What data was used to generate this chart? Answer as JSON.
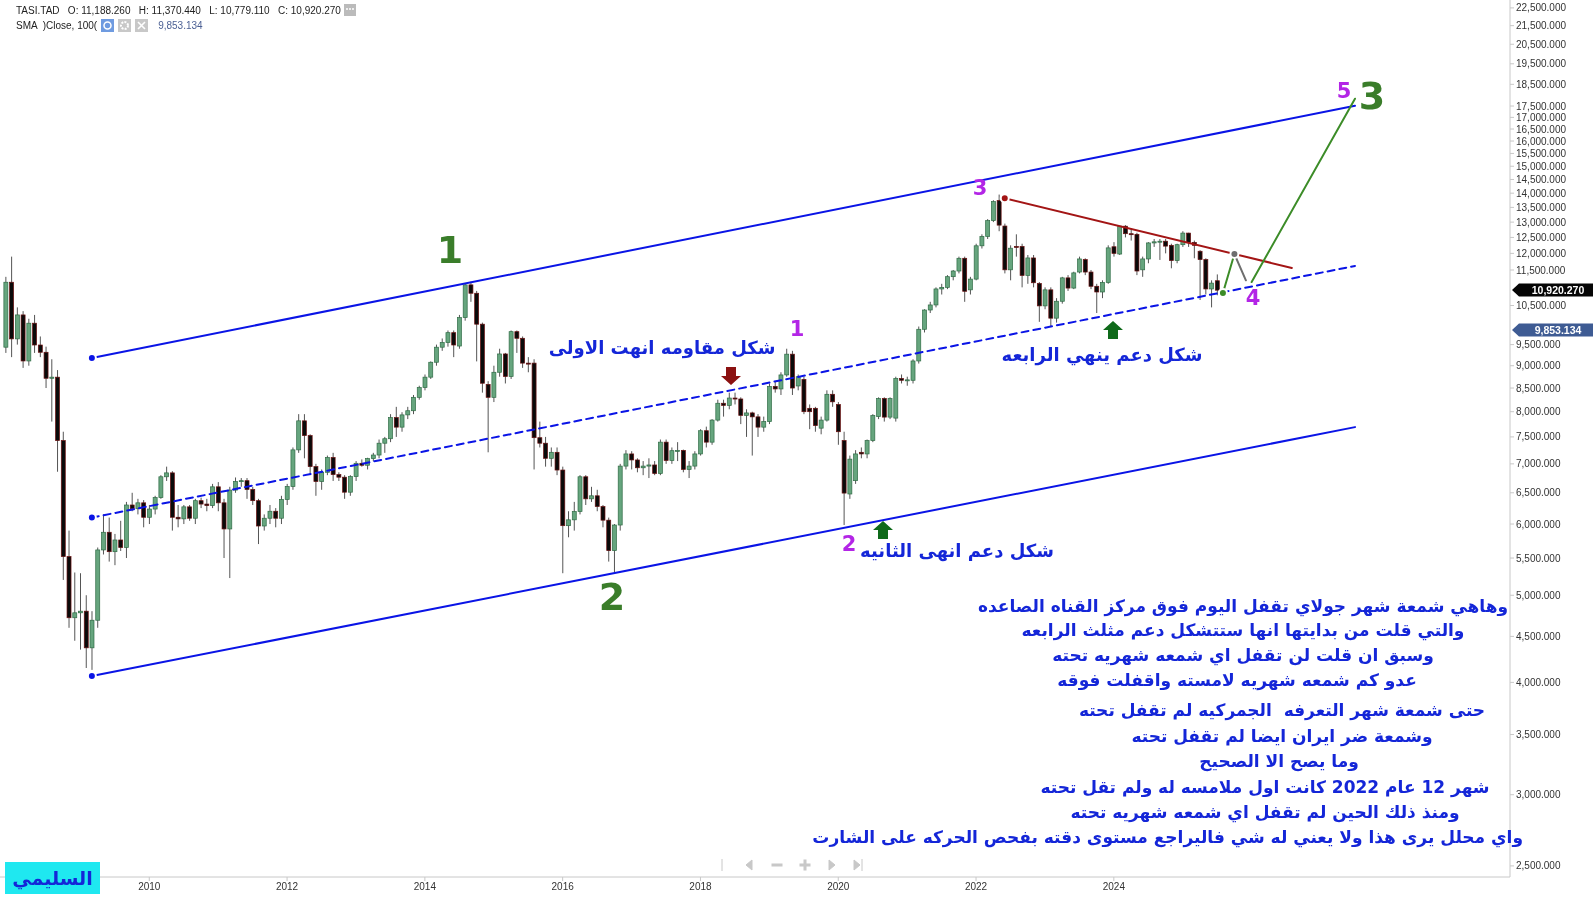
{
  "chart_data": {
    "type": "candlestick",
    "x": [
      "2007-12",
      "2008-01",
      "2008-02",
      "2008-03",
      "2008-04",
      "2008-05",
      "2008-06",
      "2008-07",
      "2008-08",
      "2008-09",
      "2008-10",
      "2008-11",
      "2008-12",
      "2009-01",
      "2009-02",
      "2009-03",
      "2009-04",
      "2009-05",
      "2009-06",
      "2009-07",
      "2009-08",
      "2009-09",
      "2009-10",
      "2009-11",
      "2009-12",
      "2010-01",
      "2010-02",
      "2010-03",
      "2010-04",
      "2010-05",
      "2010-06",
      "2010-07",
      "2010-08",
      "2010-09",
      "2010-10",
      "2010-11",
      "2010-12",
      "2011-01",
      "2011-02",
      "2011-03",
      "2011-04",
      "2011-05",
      "2011-06",
      "2011-07",
      "2011-08",
      "2011-09",
      "2011-10",
      "2011-11",
      "2011-12",
      "2012-01",
      "2012-02",
      "2012-03",
      "2012-04",
      "2012-05",
      "2012-06",
      "2012-07",
      "2012-08",
      "2012-09",
      "2012-10",
      "2012-11",
      "2012-12",
      "2013-01",
      "2013-02",
      "2013-03",
      "2013-04",
      "2013-05",
      "2013-06",
      "2013-07",
      "2013-08",
      "2013-09",
      "2013-10",
      "2013-11",
      "2013-12",
      "2014-01",
      "2014-02",
      "2014-03",
      "2014-04",
      "2014-05",
      "2014-06",
      "2014-07",
      "2014-08",
      "2014-09",
      "2014-10",
      "2014-11",
      "2014-12",
      "2015-01",
      "2015-02",
      "2015-03",
      "2015-04",
      "2015-05",
      "2015-06",
      "2015-07",
      "2015-08",
      "2015-09",
      "2015-10",
      "2015-11",
      "2015-12",
      "2016-01",
      "2016-02",
      "2016-03",
      "2016-04",
      "2016-05",
      "2016-06",
      "2016-07",
      "2016-08",
      "2016-09",
      "2016-10",
      "2016-11",
      "2016-12",
      "2017-01",
      "2017-02",
      "2017-03",
      "2017-04",
      "2017-05",
      "2017-06",
      "2017-07",
      "2017-08",
      "2017-09",
      "2017-10",
      "2017-11",
      "2017-12",
      "2018-01",
      "2018-02",
      "2018-03",
      "2018-04",
      "2018-05",
      "2018-06",
      "2018-07",
      "2018-08",
      "2018-09",
      "2018-10",
      "2018-11",
      "2018-12",
      "2019-01",
      "2019-02",
      "2019-03",
      "2019-04",
      "2019-05",
      "2019-06",
      "2019-07",
      "2019-08",
      "2019-09",
      "2019-10",
      "2019-11",
      "2019-12",
      "2020-01",
      "2020-02",
      "2020-03",
      "2020-04",
      "2020-05",
      "2020-06",
      "2020-07",
      "2020-08",
      "2020-09",
      "2020-10",
      "2020-11",
      "2020-12",
      "2021-01",
      "2021-02",
      "2021-03",
      "2021-04",
      "2021-05",
      "2021-06",
      "2021-07",
      "2021-08",
      "2021-09",
      "2021-10",
      "2021-11",
      "2021-12",
      "2022-01",
      "2022-02",
      "2022-03",
      "2022-04",
      "2022-05",
      "2022-06",
      "2022-07",
      "2022-08",
      "2022-09",
      "2022-10",
      "2022-11",
      "2022-12",
      "2023-01",
      "2023-02",
      "2023-03",
      "2023-04",
      "2023-05",
      "2023-06",
      "2023-07",
      "2023-08",
      "2023-09",
      "2023-10",
      "2023-11",
      "2023-12",
      "2024-01",
      "2024-02",
      "2024-03",
      "2024-04",
      "2024-05",
      "2024-06",
      "2024-07",
      "2024-08",
      "2024-09",
      "2024-10",
      "2024-11",
      "2024-12",
      "2025-01",
      "2025-02",
      "2025-03",
      "2025-04",
      "2025-05",
      "2025-06",
      "2025-07"
    ],
    "ohlc": [
      [
        9437,
        11300,
        9300,
        11145
      ],
      [
        11145,
        11900,
        9200,
        9640
      ],
      [
        9640,
        10450,
        9500,
        10250
      ],
      [
        10250,
        10350,
        8950,
        9110
      ],
      [
        9110,
        10150,
        9000,
        10035
      ],
      [
        10035,
        10250,
        9300,
        9490
      ],
      [
        9490,
        9700,
        9200,
        9315
      ],
      [
        9315,
        9450,
        8500,
        8715
      ],
      [
        8715,
        9150,
        7800,
        8740
      ],
      [
        8740,
        8900,
        6860,
        7430
      ],
      [
        7430,
        7600,
        5200,
        5520
      ],
      [
        5520,
        5900,
        4600,
        4720
      ],
      [
        4720,
        5300,
        4450,
        4780
      ],
      [
        4780,
        5290,
        4350,
        4800
      ],
      [
        4800,
        5000,
        4150,
        4370
      ],
      [
        4370,
        4800,
        4130,
        4690
      ],
      [
        4690,
        5650,
        4600,
        5615
      ],
      [
        5615,
        6150,
        5550,
        5875
      ],
      [
        5875,
        6100,
        5450,
        5590
      ],
      [
        5590,
        5850,
        5400,
        5760
      ],
      [
        5760,
        6050,
        5600,
        5650
      ],
      [
        5650,
        6350,
        5500,
        6300
      ],
      [
        6300,
        6500,
        6200,
        6240
      ],
      [
        6240,
        6400,
        6150,
        6335
      ],
      [
        6335,
        6380,
        5950,
        6105
      ],
      [
        6105,
        6300,
        6000,
        6235
      ],
      [
        6235,
        6450,
        6150,
        6420
      ],
      [
        6420,
        6800,
        6400,
        6772
      ],
      [
        6772,
        6950,
        6700,
        6840
      ],
      [
        6840,
        6870,
        5900,
        6105
      ],
      [
        6105,
        6300,
        5950,
        6080
      ],
      [
        6080,
        6300,
        6000,
        6270
      ],
      [
        6270,
        6300,
        6050,
        6090
      ],
      [
        6090,
        6400,
        6000,
        6370
      ],
      [
        6370,
        6420,
        6250,
        6315
      ],
      [
        6315,
        6400,
        6200,
        6290
      ],
      [
        6290,
        6650,
        6250,
        6600
      ],
      [
        6600,
        6680,
        6200,
        6335
      ],
      [
        6335,
        6400,
        5500,
        5925
      ],
      [
        5925,
        6600,
        5225,
        6545
      ],
      [
        6545,
        6760,
        6500,
        6690
      ],
      [
        6690,
        6750,
        6600,
        6705
      ],
      [
        6705,
        6750,
        6400,
        6555
      ],
      [
        6555,
        6600,
        6300,
        6370
      ],
      [
        6370,
        6400,
        5700,
        5970
      ],
      [
        5970,
        6150,
        5900,
        6090
      ],
      [
        6090,
        6300,
        6000,
        6200
      ],
      [
        6200,
        6250,
        5950,
        6090
      ],
      [
        6090,
        6450,
        6000,
        6390
      ],
      [
        6390,
        6650,
        6300,
        6605
      ],
      [
        6605,
        7300,
        6550,
        7255
      ],
      [
        7255,
        7950,
        7200,
        7815
      ],
      [
        7815,
        7950,
        7100,
        7525
      ],
      [
        7525,
        7550,
        6800,
        6950
      ],
      [
        6950,
        7000,
        6450,
        6690
      ],
      [
        6690,
        6900,
        6550,
        6850
      ],
      [
        6850,
        7150,
        6800,
        7115
      ],
      [
        7115,
        7200,
        6700,
        6810
      ],
      [
        6810,
        6850,
        6700,
        6765
      ],
      [
        6765,
        6800,
        6400,
        6510
      ],
      [
        6510,
        6800,
        6450,
        6775
      ],
      [
        6775,
        7050,
        6700,
        7010
      ],
      [
        7010,
        7080,
        6950,
        6975
      ],
      [
        6975,
        7110,
        6900,
        7095
      ],
      [
        7095,
        7200,
        7050,
        7160
      ],
      [
        7160,
        7450,
        7100,
        7380
      ],
      [
        7380,
        7500,
        7200,
        7465
      ],
      [
        7465,
        7950,
        7400,
        7880
      ],
      [
        7880,
        8100,
        7500,
        7690
      ],
      [
        7690,
        7990,
        7600,
        7935
      ],
      [
        7935,
        8100,
        7850,
        8020
      ],
      [
        8020,
        8350,
        7950,
        8300
      ],
      [
        8300,
        8550,
        8250,
        8510
      ],
      [
        8510,
        8800,
        8450,
        8740
      ],
      [
        8740,
        9100,
        8700,
        9080
      ],
      [
        9080,
        9500,
        9000,
        9437
      ],
      [
        9437,
        9650,
        9350,
        9550
      ],
      [
        9550,
        9850,
        9450,
        9795
      ],
      [
        9795,
        9850,
        9200,
        9490
      ],
      [
        9465,
        10250,
        9400,
        10180
      ],
      [
        10180,
        11100,
        10100,
        11070
      ],
      [
        11070,
        11160,
        10600,
        10835
      ],
      [
        10835,
        10900,
        9100,
        10010
      ],
      [
        10010,
        10050,
        8400,
        8605
      ],
      [
        8580,
        8650,
        7210,
        8300
      ],
      [
        8300,
        9000,
        8200,
        8850
      ],
      [
        8850,
        9400,
        8750,
        9275
      ],
      [
        9275,
        9300,
        8600,
        8755
      ],
      [
        8755,
        9850,
        8700,
        9820
      ],
      [
        9820,
        9850,
        9300,
        9655
      ],
      [
        9655,
        9700,
        8950,
        9060
      ],
      [
        9060,
        9200,
        8850,
        9040
      ],
      [
        9060,
        9150,
        6900,
        7485
      ],
      [
        7485,
        7800,
        7300,
        7380
      ],
      [
        7380,
        7500,
        6950,
        7100
      ],
      [
        7100,
        7300,
        6950,
        7210
      ],
      [
        7210,
        7300,
        6800,
        6890
      ],
      [
        6890,
        6950,
        5290,
        5975
      ],
      [
        5975,
        6200,
        5800,
        6065
      ],
      [
        6065,
        6350,
        5900,
        6195
      ],
      [
        6195,
        6800,
        6150,
        6772
      ],
      [
        6772,
        6800,
        6300,
        6400
      ],
      [
        6400,
        6600,
        6350,
        6450
      ],
      [
        6450,
        6550,
        6200,
        6275
      ],
      [
        6275,
        6300,
        5950,
        6060
      ],
      [
        6060,
        6100,
        5450,
        5605
      ],
      [
        5605,
        6000,
        5300,
        5985
      ],
      [
        5985,
        7000,
        5900,
        6960
      ],
      [
        6960,
        7250,
        6900,
        7180
      ],
      [
        7180,
        7230,
        6900,
        7070
      ],
      [
        7070,
        7100,
        6850,
        6930
      ],
      [
        6930,
        7050,
        6800,
        6960
      ],
      [
        6960,
        7100,
        6750,
        6980
      ],
      [
        6980,
        7050,
        6800,
        6830
      ],
      [
        6830,
        7450,
        6800,
        7400
      ],
      [
        7400,
        7450,
        7000,
        7060
      ],
      [
        7060,
        7300,
        7000,
        7240
      ],
      [
        7240,
        7400,
        7050,
        7245
      ],
      [
        7245,
        7260,
        6850,
        6900
      ],
      [
        6900,
        7050,
        6750,
        6960
      ],
      [
        6960,
        7230,
        6900,
        7180
      ],
      [
        7180,
        7650,
        7150,
        7620
      ],
      [
        7620,
        7700,
        7300,
        7400
      ],
      [
        7400,
        7850,
        7350,
        7830
      ],
      [
        7830,
        8250,
        7800,
        8175
      ],
      [
        8175,
        8250,
        7900,
        8130
      ],
      [
        8130,
        8400,
        8050,
        8285
      ],
      [
        8285,
        8400,
        8150,
        8265
      ],
      [
        8265,
        8300,
        7750,
        7925
      ],
      [
        7925,
        8050,
        7500,
        7975
      ],
      [
        7975,
        8000,
        7150,
        7895
      ],
      [
        7895,
        7950,
        7500,
        7690
      ],
      [
        7690,
        7900,
        7600,
        7800
      ],
      [
        7800,
        8600,
        7750,
        8535
      ],
      [
        8535,
        8650,
        8400,
        8480
      ],
      [
        8480,
        8850,
        8350,
        8790
      ],
      [
        8790,
        9400,
        8750,
        9270
      ],
      [
        9270,
        9350,
        8350,
        8500
      ],
      [
        8545,
        8800,
        8450,
        8750
      ],
      [
        8690,
        8750,
        7950,
        8000
      ],
      [
        8070,
        8150,
        7650,
        8000
      ],
      [
        8070,
        8100,
        7600,
        7720
      ],
      [
        7670,
        7900,
        7550,
        7830
      ],
      [
        7830,
        8450,
        7800,
        8365
      ],
      [
        8365,
        8450,
        8100,
        8205
      ],
      [
        8150,
        8200,
        7350,
        7600
      ],
      [
        7430,
        7600,
        5985,
        6495
      ],
      [
        6480,
        7150,
        6400,
        7085
      ],
      [
        6705,
        7250,
        6650,
        7180
      ],
      [
        7210,
        7300,
        7100,
        7180
      ],
      [
        7180,
        7450,
        7100,
        7430
      ],
      [
        7430,
        7950,
        7400,
        7920
      ],
      [
        7900,
        8300,
        7850,
        8275
      ],
      [
        8275,
        8300,
        7800,
        7890
      ],
      [
        7890,
        8300,
        7850,
        8275
      ],
      [
        7870,
        8750,
        7800,
        8710
      ],
      [
        8710,
        8800,
        8600,
        8670
      ],
      [
        8670,
        8750,
        8550,
        8680
      ],
      [
        8670,
        9150,
        8600,
        9110
      ],
      [
        9110,
        9950,
        9050,
        9880
      ],
      [
        9880,
        10400,
        9800,
        10380
      ],
      [
        10380,
        10600,
        10300,
        10515
      ],
      [
        10515,
        11000,
        10450,
        10955
      ],
      [
        10955,
        11100,
        10800,
        11000
      ],
      [
        11000,
        11350,
        10950,
        11305
      ],
      [
        11305,
        11500,
        11200,
        11470
      ],
      [
        11470,
        11900,
        11400,
        11850
      ],
      [
        11850,
        11900,
        10600,
        10890
      ],
      [
        10930,
        11300,
        10800,
        11235
      ],
      [
        11235,
        12300,
        11200,
        12235
      ],
      [
        12235,
        12600,
        12150,
        12530
      ],
      [
        12530,
        13100,
        12450,
        13050
      ],
      [
        13050,
        13750,
        13000,
        13700
      ],
      [
        13740,
        13950,
        12700,
        12900
      ],
      [
        12870,
        12950,
        11400,
        11505
      ],
      [
        11505,
        12250,
        11200,
        12160
      ],
      [
        12215,
        12600,
        11900,
        12195
      ],
      [
        12215,
        12300,
        11000,
        11340
      ],
      [
        11340,
        11950,
        11100,
        11860
      ],
      [
        11860,
        11950,
        11000,
        11130
      ],
      [
        11110,
        11150,
        10070,
        10490
      ],
      [
        10490,
        11000,
        10400,
        10930
      ],
      [
        10930,
        11000,
        9950,
        10165
      ],
      [
        10165,
        10700,
        10050,
        10615
      ],
      [
        10615,
        11300,
        10550,
        11270
      ],
      [
        11270,
        11350,
        10900,
        10980
      ],
      [
        10980,
        11450,
        10950,
        11415
      ],
      [
        11440,
        11900,
        11400,
        11830
      ],
      [
        11810,
        11850,
        11350,
        11440
      ],
      [
        11440,
        11500,
        10950,
        11030
      ],
      [
        11030,
        11100,
        10300,
        10870
      ],
      [
        10870,
        11200,
        10700,
        11140
      ],
      [
        11140,
        12250,
        11100,
        12170
      ],
      [
        12205,
        12350,
        11900,
        12000
      ],
      [
        11980,
        12880,
        11950,
        12865
      ],
      [
        12865,
        12900,
        12500,
        12620
      ],
      [
        12620,
        12800,
        12400,
        12600
      ],
      [
        12600,
        12650,
        11350,
        11470
      ],
      [
        11505,
        11900,
        11300,
        11830
      ],
      [
        11830,
        12350,
        11700,
        12325
      ],
      [
        12325,
        12450,
        12200,
        12360
      ],
      [
        12360,
        12450,
        11800,
        12380
      ],
      [
        12380,
        12450,
        12000,
        12225
      ],
      [
        12250,
        12300,
        11550,
        11780
      ],
      [
        11780,
        12300,
        11700,
        12270
      ],
      [
        12270,
        12700,
        12200,
        12640
      ],
      [
        12640,
        12650,
        12200,
        12340
      ],
      [
        12340,
        12400,
        11850,
        12250
      ],
      [
        12065,
        12100,
        10650,
        11810
      ],
      [
        11810,
        11850,
        10800,
        10955
      ],
      [
        10955,
        11200,
        10450,
        11120
      ],
      [
        11188.26,
        11370.44,
        10779.11,
        10920.27
      ]
    ],
    "series": [
      {
        "type": "line",
        "x": [
          "2009-03",
          "2027-07"
        ],
        "values": [
          9180,
          17510
        ],
        "color": "#0a14e6"
      },
      {
        "type": "line",
        "x": [
          "2009-03",
          "2027-07"
        ],
        "values": [
          4065,
          7690
        ],
        "color": "#0a14e6"
      },
      {
        "type": "line",
        "x": [
          "2009-03",
          "2027-07"
        ],
        "values": [
          6100,
          11620
        ],
        "color": "#0a14e6",
        "line_style": "dashed"
      },
      {
        "type": "line",
        "x": [
          "2022-06",
          "2026-08"
        ],
        "values": [
          13820,
          11560
        ],
        "color": "#a31515"
      },
      {
        "type": "line",
        "x": [
          "2025-08",
          "2025-10",
          "2025-11",
          "2026-01",
          "2027-07"
        ],
        "values": [
          10840,
          11980,
          null,
          11150,
          17830
        ],
        "color": "#3c8c28"
      },
      {
        "type": "line",
        "x": [
          "2025-10",
          "2025-12"
        ],
        "values": [
          11980,
          11200
        ],
        "color": "#6e6e6e"
      }
    ],
    "xlim": [
      "2007-11",
      "2029-10"
    ],
    "xticks": [
      "2010",
      "2012",
      "2014",
      "2016",
      "2018",
      "2020",
      "2022",
      "2024"
    ],
    "ylim": [
      2430,
      22960
    ],
    "log": "y",
    "yticks": [
      {
        "value": 2500,
        "label": "2,500.000"
      },
      {
        "value": 3000,
        "label": "3,000.000"
      },
      {
        "value": 3500,
        "label": "3,500.000"
      },
      {
        "value": 4000,
        "label": "4,000.000"
      },
      {
        "value": 4500,
        "label": "4,500.000"
      },
      {
        "value": 5000,
        "label": "5,000.000"
      },
      {
        "value": 5500,
        "label": "5,500.000"
      },
      {
        "value": 6000,
        "label": "6,000.000"
      },
      {
        "value": 6500,
        "label": "6,500.000"
      },
      {
        "value": 7000,
        "label": "7,000.000"
      },
      {
        "value": 7500,
        "label": "7,500.000"
      },
      {
        "value": 8000,
        "label": "8,000.000"
      },
      {
        "value": 8500,
        "label": "8,500.000"
      },
      {
        "value": 9000,
        "label": "9,000.000"
      },
      {
        "value": 9500,
        "label": "9,500.000"
      },
      {
        "value": 10500,
        "label": "10,500.000"
      },
      {
        "value": 11500,
        "label": "11,500.000"
      },
      {
        "value": 12000,
        "label": "12,000.000"
      },
      {
        "value": 12500,
        "label": "12,500.000"
      },
      {
        "value": 13000,
        "label": "13,000.000"
      },
      {
        "value": 13500,
        "label": "13,500.000"
      },
      {
        "value": 14000,
        "label": "14,000.000"
      },
      {
        "value": 14500,
        "label": "14,500.000"
      },
      {
        "value": 15000,
        "label": "15,000.000"
      },
      {
        "value": 15500,
        "label": "15,500.000"
      },
      {
        "value": 16000,
        "label": "16,000.000"
      },
      {
        "value": 16500,
        "label": "16,500.000"
      },
      {
        "value": 17000,
        "label": "17,000.000"
      },
      {
        "value": 17500,
        "label": "17,500.000"
      },
      {
        "value": 18500,
        "label": "18,500.000"
      },
      {
        "value": 19500,
        "label": "19,500.000"
      },
      {
        "value": 20500,
        "label": "20,500.000"
      },
      {
        "value": 21500,
        "label": "21,500.000"
      },
      {
        "value": 22500,
        "label": "22,500.000"
      }
    ],
    "annotations": [
      "1",
      "2",
      "3",
      "1",
      "2",
      "3",
      "4",
      "5",
      "شكل مقاومه انهت الاولى",
      "شكل دعم ينهي الرابعه",
      "شكل  دعم انهى الثانيه",
      "10,920.270",
      "9,853.134",
      "TASI.TAD   O: 11,188.260   H: 11,370.440   L: 10,779.110   C: 10,920.270",
      "SMA  )Close, 100(",
      "وهاهي شمعة شهر جولاي تقفل اليوم فوق مركز القناه الصاعده",
      "والتي قلت من بدايتها انها ستتشكل دعم مثلث الرابعه",
      "وسبق ان قلت لن تقفل اي شمعه شهريه تحته",
      "عدو كم شمعه شهريه لامسته واقفلت فوقه",
      "حتى شمعة شهر التعرفه  الجمركيه لم تقفل تحته",
      "وشمعة ضر ايران ايضا لم تقفل تحته",
      "وما يصح الا الصحيح",
      "شهر 12 عام 2022 كانت اول ملامسه له ولم تقل تحته",
      "ومنذ ذلك الحين لم تقفل اي شمعه شهريه تحته",
      "واي محلل يرى هذا ولا يعني له شي فاليراجع مستوى دقته بفحص الحركه على الشارت",
      "السليمي"
    ]
  }
}
